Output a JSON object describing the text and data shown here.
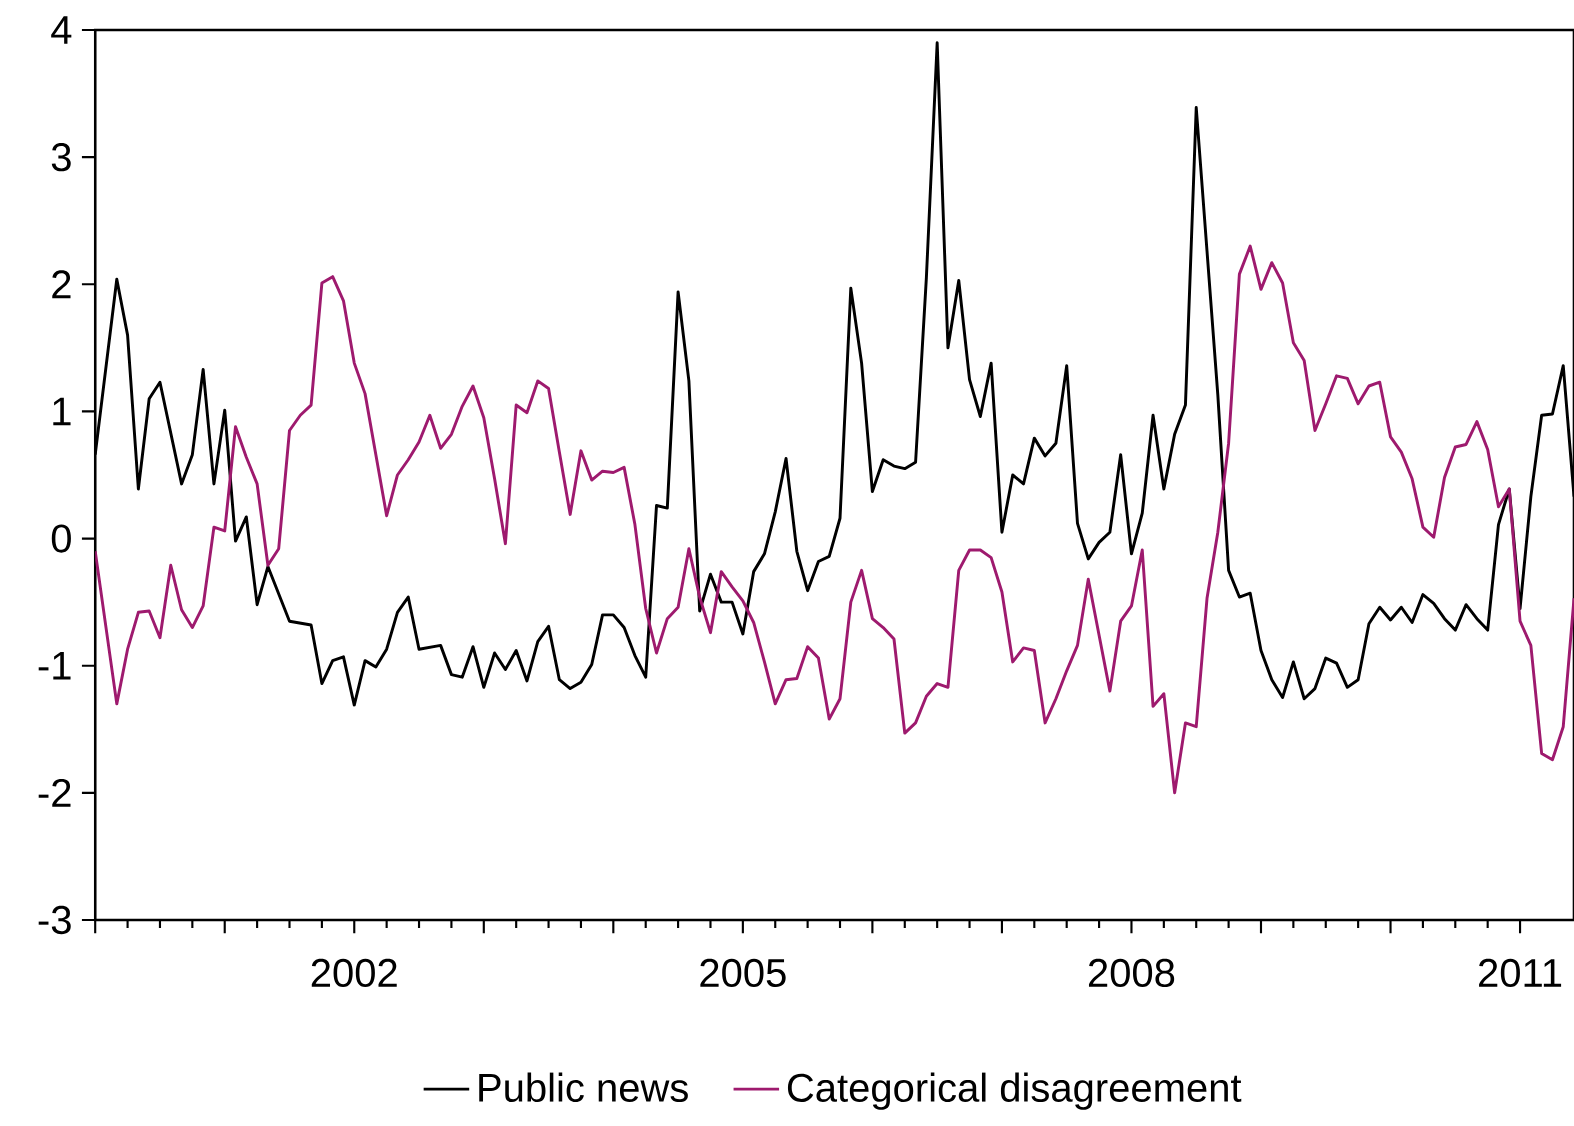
{
  "chart_data": {
    "type": "line",
    "xlim": [
      "2000-01",
      "2011-06"
    ],
    "ylim": [
      -3,
      4
    ],
    "yticks": [
      -3,
      -2,
      -1,
      0,
      1,
      2,
      3,
      4
    ],
    "xticks": [
      {
        "value": "2000",
        "label": null
      },
      {
        "value": "2001",
        "label": null
      },
      "2002",
      {
        "value": "2003",
        "label": null
      },
      {
        "value": "2004",
        "label": null
      },
      "2005",
      {
        "value": "2006",
        "label": null
      },
      {
        "value": "2007",
        "label": null
      },
      "2008",
      {
        "value": "2009",
        "label": null
      },
      {
        "value": "2010",
        "label": null
      },
      "2011"
    ],
    "legend": "bottom",
    "series": [
      {
        "name": "Public news",
        "color": "#000000",
        "x": [
          "2000-01",
          "2000-03",
          "2000-04",
          "2000-05",
          "2000-06",
          "2000-07",
          "2000-09",
          "2000-10",
          "2000-11",
          "2000-12",
          "2001-01",
          "2001-02",
          "2001-03",
          "2001-04",
          "2001-05",
          "2001-07",
          "2001-09",
          "2001-10",
          "2001-11",
          "2001-12",
          "2002-01",
          "2002-02",
          "2002-03",
          "2002-04",
          "2002-05",
          "2002-06",
          "2002-07",
          "2002-09",
          "2002-10",
          "2002-11",
          "2002-12",
          "2003-01",
          "2003-02",
          "2003-03",
          "2003-04",
          "2003-05",
          "2003-06",
          "2003-07",
          "2003-08",
          "2003-09",
          "2003-10",
          "2003-11",
          "2003-12",
          "2004-01",
          "2004-02",
          "2004-03",
          "2004-04",
          "2004-05",
          "2004-06",
          "2004-07",
          "2004-08",
          "2004-09",
          "2004-10",
          "2004-11",
          "2004-12",
          "2005-01",
          "2005-02",
          "2005-03",
          "2005-04",
          "2005-05",
          "2005-06",
          "2005-07",
          "2005-08",
          "2005-09",
          "2005-10",
          "2005-11",
          "2005-12",
          "2006-01",
          "2006-02",
          "2006-03",
          "2006-04",
          "2006-05",
          "2006-06",
          "2006-07",
          "2006-08",
          "2006-09",
          "2006-10",
          "2006-11",
          "2006-12",
          "2007-01",
          "2007-02",
          "2007-03",
          "2007-04",
          "2007-05",
          "2007-06",
          "2007-07",
          "2007-08",
          "2007-09",
          "2007-10",
          "2007-11",
          "2007-12",
          "2008-01",
          "2008-02",
          "2008-03",
          "2008-04",
          "2008-05",
          "2008-06",
          "2008-07",
          "2008-08",
          "2008-09",
          "2008-10",
          "2008-11",
          "2008-12",
          "2009-01",
          "2009-02",
          "2009-03",
          "2009-04",
          "2009-05",
          "2009-06",
          "2009-07",
          "2009-08",
          "2009-09",
          "2009-10",
          "2009-11",
          "2009-12",
          "2010-01",
          "2010-02",
          "2010-03",
          "2010-04",
          "2010-05",
          "2010-06",
          "2010-07",
          "2010-08",
          "2010-09",
          "2010-10",
          "2010-11",
          "2010-12",
          "2011-01",
          "2011-02",
          "2011-03",
          "2011-04",
          "2011-05",
          "2011-06"
        ],
        "values": [
          0.66,
          2.04,
          1.6,
          0.39,
          1.1,
          1.23,
          0.43,
          0.66,
          1.33,
          0.43,
          1.01,
          -0.02,
          0.17,
          -0.52,
          -0.22,
          -0.65,
          -0.68,
          -1.14,
          -0.96,
          -0.93,
          -1.31,
          -0.96,
          -1.01,
          -0.87,
          -0.58,
          -0.46,
          -0.87,
          -0.84,
          -1.07,
          -1.09,
          -0.85,
          -1.17,
          -0.9,
          -1.03,
          -0.88,
          -1.12,
          -0.81,
          -0.69,
          -1.11,
          -1.18,
          -1.13,
          -0.99,
          -0.6,
          -0.6,
          -0.7,
          -0.92,
          -1.09,
          0.26,
          0.24,
          1.94,
          1.24,
          -0.57,
          -0.28,
          -0.5,
          -0.5,
          -0.75,
          -0.26,
          -0.12,
          0.21,
          0.63,
          -0.1,
          -0.41,
          -0.18,
          -0.14,
          0.16,
          1.97,
          1.38,
          0.37,
          0.62,
          0.57,
          0.55,
          0.6,
          2.05,
          3.9,
          1.5,
          2.03,
          1.25,
          0.96,
          1.38,
          0.05,
          0.5,
          0.43,
          0.79,
          0.65,
          0.75,
          1.36,
          0.12,
          -0.16,
          -0.03,
          0.05,
          0.66,
          -0.12,
          0.2,
          0.97,
          0.39,
          0.82,
          1.05,
          3.39,
          2.26,
          1.13,
          -0.25,
          -0.46,
          -0.43,
          -0.88,
          -1.11,
          -1.25,
          -0.97,
          -1.26,
          -1.18,
          -0.94,
          -0.98,
          -1.17,
          -1.11,
          -0.67,
          -0.54,
          -0.64,
          -0.54,
          -0.66,
          -0.44,
          -0.51,
          -0.63,
          -0.72,
          -0.52,
          -0.63,
          -0.72,
          0.11,
          0.39,
          -0.55,
          0.33,
          0.97,
          0.98,
          1.36,
          0.33
        ]
      },
      {
        "name": "Categorical disagreement",
        "color": "#9e1a6e",
        "x": [
          "2000-01",
          "2000-03",
          "2000-04",
          "2000-05",
          "2000-06",
          "2000-07",
          "2000-08",
          "2000-09",
          "2000-10",
          "2000-11",
          "2000-12",
          "2001-01",
          "2001-02",
          "2001-03",
          "2001-04",
          "2001-05",
          "2001-06",
          "2001-07",
          "2001-08",
          "2001-09",
          "2001-10",
          "2001-11",
          "2001-12",
          "2002-01",
          "2002-02",
          "2002-03",
          "2002-04",
          "2002-05",
          "2002-06",
          "2002-07",
          "2002-08",
          "2002-09",
          "2002-10",
          "2002-11",
          "2002-12",
          "2003-01",
          "2003-02",
          "2003-03",
          "2003-04",
          "2003-05",
          "2003-06",
          "2003-07",
          "2003-08",
          "2003-09",
          "2003-10",
          "2003-11",
          "2003-12",
          "2004-01",
          "2004-02",
          "2004-03",
          "2004-04",
          "2004-05",
          "2004-06",
          "2004-07",
          "2004-08",
          "2004-09",
          "2004-10",
          "2004-11",
          "2004-12",
          "2005-01",
          "2005-02",
          "2005-03",
          "2005-04",
          "2005-05",
          "2005-06",
          "2005-07",
          "2005-08",
          "2005-09",
          "2005-10",
          "2005-11",
          "2005-12",
          "2006-01",
          "2006-02",
          "2006-03",
          "2006-04",
          "2006-05",
          "2006-06",
          "2006-07",
          "2006-08",
          "2006-09",
          "2006-10",
          "2006-11",
          "2006-12",
          "2007-01",
          "2007-02",
          "2007-03",
          "2007-04",
          "2007-05",
          "2007-06",
          "2007-07",
          "2007-08",
          "2007-09",
          "2007-10",
          "2007-11",
          "2007-12",
          "2008-01",
          "2008-02",
          "2008-03",
          "2008-04",
          "2008-05",
          "2008-06",
          "2008-07",
          "2008-08",
          "2008-09",
          "2008-10",
          "2008-11",
          "2008-12",
          "2009-01",
          "2009-02",
          "2009-03",
          "2009-04",
          "2009-05",
          "2009-06",
          "2009-07",
          "2009-08",
          "2009-09",
          "2009-10",
          "2009-11",
          "2009-12",
          "2010-01",
          "2010-02",
          "2010-03",
          "2010-04",
          "2010-05",
          "2010-06",
          "2010-07",
          "2010-08",
          "2010-09",
          "2010-10",
          "2010-11",
          "2010-12",
          "2011-01",
          "2011-02",
          "2011-03",
          "2011-04",
          "2011-05",
          "2011-06"
        ],
        "values": [
          -0.1,
          -1.3,
          -0.87,
          -0.58,
          -0.57,
          -0.78,
          -0.21,
          -0.56,
          -0.7,
          -0.53,
          0.09,
          0.06,
          0.88,
          0.64,
          0.43,
          -0.21,
          -0.08,
          0.85,
          0.97,
          1.05,
          2.01,
          2.06,
          1.87,
          1.38,
          1.14,
          0.66,
          0.18,
          0.5,
          0.62,
          0.76,
          0.97,
          0.71,
          0.82,
          1.04,
          1.2,
          0.95,
          0.47,
          -0.04,
          1.05,
          0.99,
          1.24,
          1.18,
          0.68,
          0.19,
          0.69,
          0.46,
          0.53,
          0.52,
          0.56,
          0.11,
          -0.55,
          -0.9,
          -0.63,
          -0.54,
          -0.08,
          -0.46,
          -0.74,
          -0.26,
          -0.38,
          -0.49,
          -0.66,
          -0.97,
          -1.3,
          -1.11,
          -1.1,
          -0.85,
          -0.94,
          -1.42,
          -1.26,
          -0.5,
          -0.25,
          -0.63,
          -0.7,
          -0.79,
          -1.53,
          -1.45,
          -1.24,
          -1.14,
          -1.17,
          -0.25,
          -0.09,
          -0.09,
          -0.15,
          -0.42,
          -0.97,
          -0.86,
          -0.88,
          -1.45,
          -1.26,
          -1.04,
          -0.84,
          -0.32,
          -0.76,
          -1.2,
          -0.65,
          -0.53,
          -0.09,
          -1.32,
          -1.22,
          -2.0,
          -1.45,
          -1.48,
          -0.47,
          0.05,
          0.75,
          2.08,
          2.3,
          1.96,
          2.17,
          2.01,
          1.54,
          1.4,
          0.85,
          1.06,
          1.28,
          1.26,
          1.06,
          1.2,
          1.23,
          0.8,
          0.68,
          0.47,
          0.09,
          0.01,
          0.48,
          0.72,
          0.74,
          0.92,
          0.7,
          0.25,
          0.39,
          -0.65,
          -0.84,
          -1.69,
          -1.74,
          -1.48,
          -0.47
        ]
      }
    ]
  }
}
